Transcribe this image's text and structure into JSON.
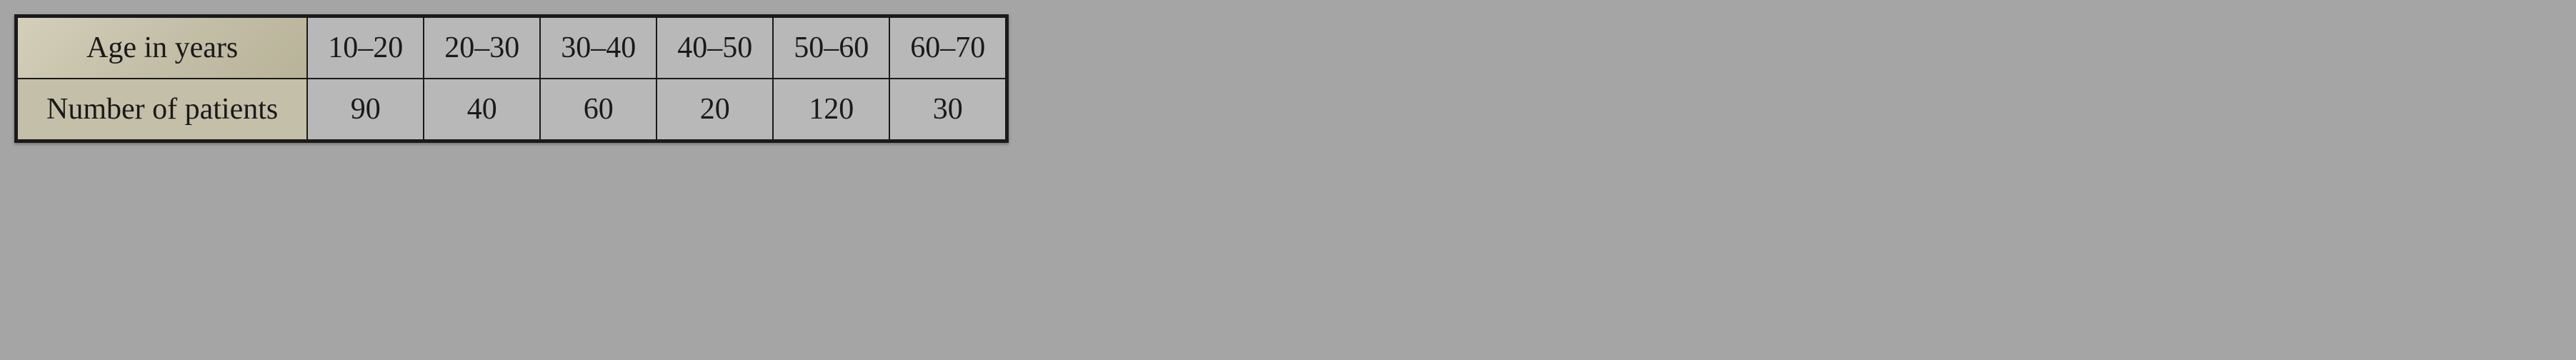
{
  "table": {
    "type": "table",
    "columns": [
      "header",
      "col1",
      "col2",
      "col3",
      "col4",
      "col5",
      "col6"
    ],
    "rows": [
      {
        "header": "Age in years",
        "cells": [
          "10–20",
          "20–30",
          "30–40",
          "40–50",
          "50–60",
          "60–70"
        ]
      },
      {
        "header": "Number of patients",
        "cells": [
          "90",
          "40",
          "60",
          "20",
          "120",
          "30"
        ]
      }
    ],
    "styling": {
      "border_color": "#1a1a1a",
      "border_width": 2,
      "outer_border_width": 3,
      "cell_background": "#b8b8b8",
      "header_cell_background": "#c4bfa8",
      "first_header_gradient": [
        "#d4cfb8",
        "#c4bfa8",
        "#b8b398"
      ],
      "text_color": "#1a1a1a",
      "font_family": "Georgia, Times New Roman, serif",
      "font_size_pt": 32,
      "cell_padding_v": 18,
      "cell_padding_h": 28,
      "header_padding_h": 40,
      "data_cell_min_width": 140,
      "body_background": "#a5a5a5"
    }
  }
}
